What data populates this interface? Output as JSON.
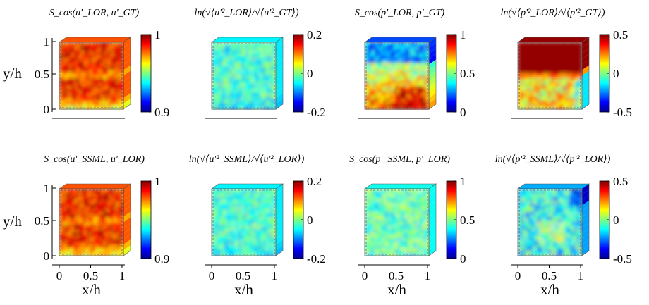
{
  "figure": {
    "ylabel": "y/h",
    "xlabel": "x/h",
    "x_ticks": [
      "0",
      "0.5",
      "1"
    ],
    "y_ticks": [
      "1",
      "0.5",
      "0"
    ],
    "rows": [
      {
        "panels": [
          {
            "title": "S_cos(u'_LOR, u'_GT)",
            "cbar_ticks": [
              "1",
              "0.9"
            ],
            "clim": [
              0.9,
              1
            ],
            "field": "cos_u_high"
          },
          {
            "title": "ln(√⟨u'²_LOR⟩/√⟨u'²_GT⟩)",
            "cbar_ticks": [
              "0.2",
              "0",
              "-0.2"
            ],
            "clim": [
              -0.2,
              0.2
            ],
            "field": "ln_mid"
          },
          {
            "title": "S_cos(p'_LOR, p'_GT)",
            "cbar_ticks": [
              "1",
              "0.5",
              "0"
            ],
            "clim": [
              0,
              1
            ],
            "field": "cos_p_gt"
          },
          {
            "title": "ln(√⟨p'²_LOR⟩/√⟨p'²_GT⟩)",
            "cbar_ticks": [
              "0.5",
              "0",
              "-0.5"
            ],
            "clim": [
              -0.5,
              0.5
            ],
            "field": "ln_p_gt"
          }
        ]
      },
      {
        "panels": [
          {
            "title": "S_cos(u'_SSML, u'_LOR)",
            "cbar_ticks": [
              "1",
              "0.9"
            ],
            "clim": [
              0.9,
              1
            ],
            "field": "cos_u_high"
          },
          {
            "title": "ln(√⟨u'²_SSML⟩/√⟨u'²_LOR⟩)",
            "cbar_ticks": [
              "0.2",
              "0",
              "-0.2"
            ],
            "clim": [
              -0.2,
              0.2
            ],
            "field": "ln_mid"
          },
          {
            "title": "S_cos(p'_SSML, p'_LOR)",
            "cbar_ticks": [
              "1",
              "0.5",
              "0"
            ],
            "clim": [
              0,
              1
            ],
            "field": "cos_p_ssml"
          },
          {
            "title": "ln(√⟨p'²_SSML⟩/√⟨p'²_LOR⟩)",
            "cbar_ticks": [
              "0.5",
              "0",
              "-0.5"
            ],
            "clim": [
              -0.5,
              0.5
            ],
            "field": "ln_p_ssml"
          }
        ]
      }
    ],
    "colormap": "jet"
  }
}
